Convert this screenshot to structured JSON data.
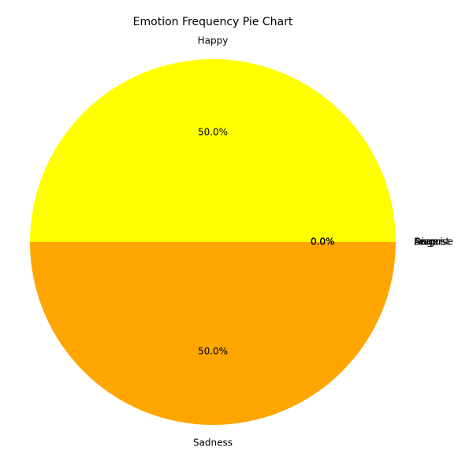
{
  "chart_data": {
    "type": "pie",
    "title": "Emotion Frequency Pie Chart",
    "slices": [
      {
        "label": "Happy",
        "value": 50,
        "percent_label": "50.0%",
        "color": "#ffff00"
      },
      {
        "label": "Sadness",
        "value": 50,
        "percent_label": "50.0%",
        "color": "#ffa500"
      },
      {
        "label": "Anger",
        "value": 0,
        "percent_label": "0.0%",
        "color": "#ff0000"
      },
      {
        "label": "Fear",
        "value": 0,
        "percent_label": "0.0%",
        "color": "#800080"
      },
      {
        "label": "Disgust",
        "value": 0,
        "percent_label": "0.0%",
        "color": "#008000"
      },
      {
        "label": "Surprise",
        "value": 0,
        "percent_label": "0.0%",
        "color": "#0000ff"
      }
    ]
  }
}
